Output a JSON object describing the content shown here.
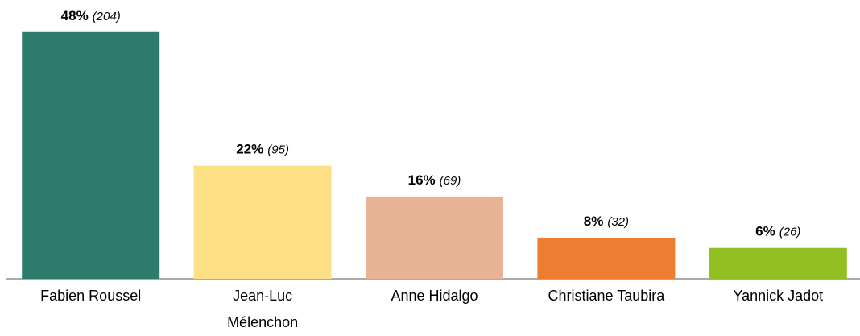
{
  "chart_data": {
    "type": "bar",
    "categories": [
      "Fabien Roussel",
      "Jean-Luc\nMélenchon",
      "Anne Hidalgo",
      "Christiane Taubira",
      "Yannick Jadot"
    ],
    "values": [
      48,
      22,
      16,
      8,
      6
    ],
    "value_labels": [
      "48%",
      "22%",
      "16%",
      "8%",
      "6%"
    ],
    "count_labels": [
      "(204)",
      "(95)",
      "(69)",
      "(32)",
      "(26)"
    ],
    "colors": [
      "#2e7d6c",
      "#fde085",
      "#e8b294",
      "#ed7d31",
      "#92c023"
    ],
    "ylim": [
      0,
      50
    ]
  }
}
